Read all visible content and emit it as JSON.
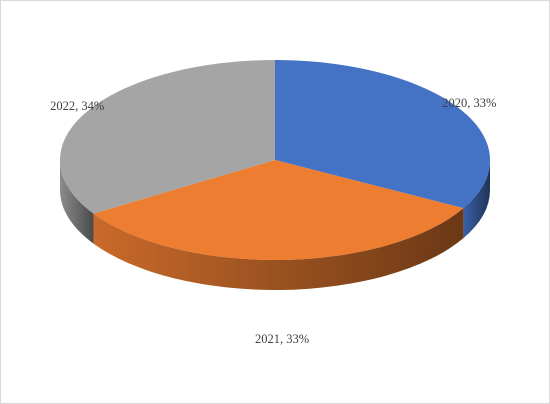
{
  "chart_data": {
    "type": "pie3d",
    "values": [
      33,
      33,
      34
    ],
    "value_labels": [
      "2020, 33%",
      "2021, 33%",
      "2022, 34%"
    ],
    "colors": [
      "#4472c4",
      "#ed7d31",
      "#a5a5a5"
    ]
  }
}
